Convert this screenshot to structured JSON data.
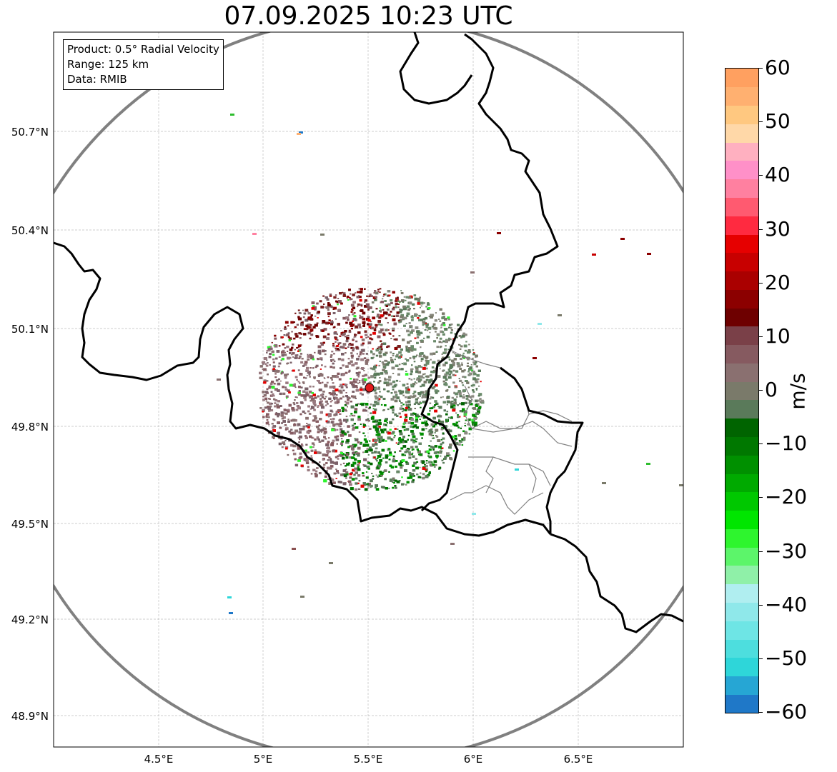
{
  "map": {
    "title": "07.09.2025 10:23 UTC",
    "info_box": {
      "product": "Product: 0.5° Radial Velocity",
      "range": "Range: 125 km",
      "source": "Data: RMIB"
    },
    "latitude_ticks": [
      "50.7°N",
      "50.4°N",
      "50.1°N",
      "49.8°N",
      "49.5°N",
      "49.2°N",
      "48.9°N"
    ],
    "longitude_ticks": [
      "4.5°E",
      "5°E",
      "5.5°E",
      "6°E",
      "6.5°E"
    ],
    "radar_site": {
      "lon": 5.505,
      "lat": 49.915,
      "color": "#e31a1c"
    },
    "range_ring_color": "#808080",
    "colorbar": {
      "label": "m/s",
      "ticks": [
        "60",
        "50",
        "40",
        "30",
        "20",
        "10",
        "0",
        "−10",
        "−20",
        "−30",
        "−40",
        "−50",
        "−60"
      ],
      "min": -60,
      "max": 60,
      "colors": [
        "#1f78c8",
        "#26a6d4",
        "#2ed6d9",
        "#4ddede",
        "#6ee5e5",
        "#8fe8ea",
        "#b0eef0",
        "#8ff0a8",
        "#5cf56a",
        "#2ef52e",
        "#00e600",
        "#00c800",
        "#00aa00",
        "#009000",
        "#007800",
        "#006400",
        "#5a7a5a",
        "#7a7a6a",
        "#8a7070",
        "#865a60",
        "#7a4048",
        "#6e0000",
        "#8c0000",
        "#aa0000",
        "#c80000",
        "#e60000",
        "#ff2a40",
        "#ff5a70",
        "#ff80a0",
        "#ff90c8",
        "#ffb0c0",
        "#ffd8a8",
        "#ffc880",
        "#ffb070",
        "#ffa060"
      ]
    }
  }
}
